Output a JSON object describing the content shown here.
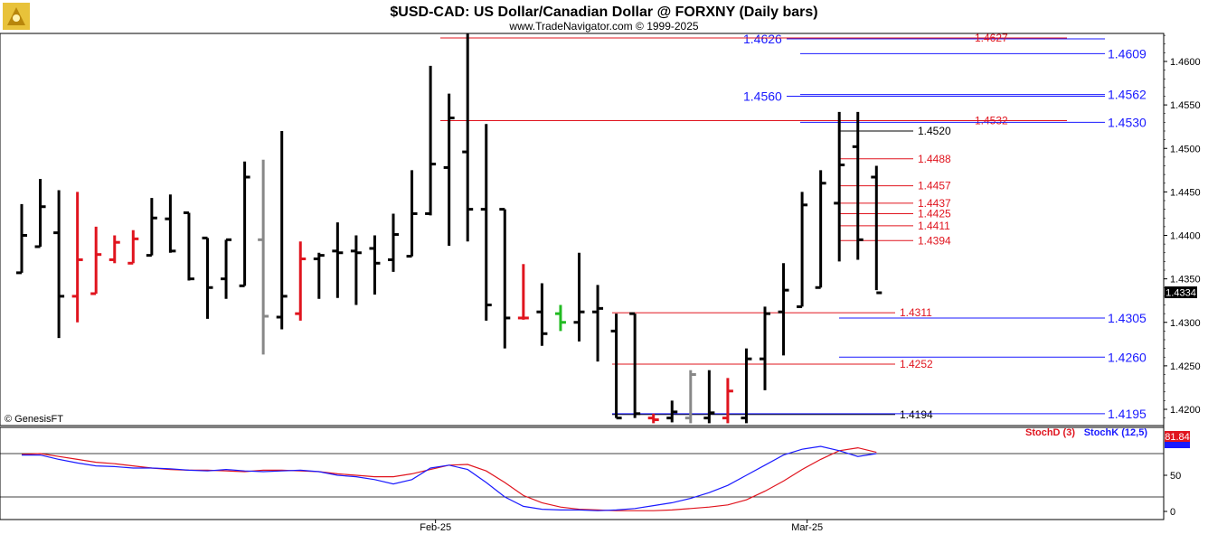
{
  "chart_data": [
    {
      "type": "ohlc",
      "title": "$USD-CAD:  US Dollar/Canadian Dollar @ FORXNY  (Daily bars)",
      "subtitle": "www.TradeNavigator.com © 1999-2025",
      "watermark": "© GenesisFT",
      "x_labels": [
        {
          "label": "Feb-25",
          "bar": 23
        },
        {
          "label": "Mar-25",
          "bar": 43
        }
      ],
      "y_ticks": [
        1.42,
        1.425,
        1.43,
        1.435,
        1.44,
        1.445,
        1.45,
        1.455,
        1.46
      ],
      "ylim": [
        1.418,
        1.4635
      ],
      "last_price": "1.4334",
      "last_price_value": 1.4334,
      "bars": [
        {
          "o": 1.4357,
          "h": 1.4436,
          "l": 1.4357,
          "c": 1.44,
          "color": "#000000"
        },
        {
          "o": 1.4387,
          "h": 1.4465,
          "l": 1.4387,
          "c": 1.4433,
          "color": "#000000"
        },
        {
          "o": 1.4403,
          "h": 1.4452,
          "l": 1.4282,
          "c": 1.433,
          "color": "#000000"
        },
        {
          "o": 1.433,
          "h": 1.445,
          "l": 1.43,
          "c": 1.4372,
          "color": "#e0141e"
        },
        {
          "o": 1.4333,
          "h": 1.441,
          "l": 1.4333,
          "c": 1.4378,
          "color": "#e0141e"
        },
        {
          "o": 1.4372,
          "h": 1.44,
          "l": 1.4368,
          "c": 1.4392,
          "color": "#e0141e"
        },
        {
          "o": 1.4368,
          "h": 1.4406,
          "l": 1.4368,
          "c": 1.4396,
          "color": "#e0141e"
        },
        {
          "o": 1.4377,
          "h": 1.4443,
          "l": 1.4377,
          "c": 1.442,
          "color": "#000000"
        },
        {
          "o": 1.4419,
          "h": 1.4447,
          "l": 1.438,
          "c": 1.4382,
          "color": "#000000"
        },
        {
          "o": 1.4426,
          "h": 1.4426,
          "l": 1.4348,
          "c": 1.435,
          "color": "#000000"
        },
        {
          "o": 1.4397,
          "h": 1.4397,
          "l": 1.4304,
          "c": 1.434,
          "color": "#000000"
        },
        {
          "o": 1.435,
          "h": 1.4395,
          "l": 1.4327,
          "c": 1.4395,
          "color": "#000000"
        },
        {
          "o": 1.4342,
          "h": 1.4485,
          "l": 1.4342,
          "c": 1.4467,
          "color": "#000000"
        },
        {
          "o": 1.4395,
          "h": 1.4487,
          "l": 1.4263,
          "c": 1.4307,
          "color": "#888888"
        },
        {
          "o": 1.4306,
          "h": 1.452,
          "l": 1.4292,
          "c": 1.433,
          "color": "#000000"
        },
        {
          "o": 1.431,
          "h": 1.4393,
          "l": 1.4302,
          "c": 1.4373,
          "color": "#e0141e"
        },
        {
          "o": 1.4373,
          "h": 1.438,
          "l": 1.4327,
          "c": 1.4377,
          "color": "#000000"
        },
        {
          "o": 1.4382,
          "h": 1.4415,
          "l": 1.4328,
          "c": 1.438,
          "color": "#000000"
        },
        {
          "o": 1.4382,
          "h": 1.44,
          "l": 1.432,
          "c": 1.438,
          "color": "#000000"
        },
        {
          "o": 1.4385,
          "h": 1.44,
          "l": 1.4332,
          "c": 1.4368,
          "color": "#000000"
        },
        {
          "o": 1.4372,
          "h": 1.4425,
          "l": 1.4358,
          "c": 1.4401,
          "color": "#000000"
        },
        {
          "o": 1.4376,
          "h": 1.4475,
          "l": 1.4376,
          "c": 1.4425,
          "color": "#000000"
        },
        {
          "o": 1.4425,
          "h": 1.4595,
          "l": 1.4423,
          "c": 1.4482,
          "color": "#000000"
        },
        {
          "o": 1.4478,
          "h": 1.4563,
          "l": 1.4388,
          "c": 1.4535,
          "color": "#000000"
        },
        {
          "o": 1.4496,
          "h": 1.4632,
          "l": 1.4393,
          "c": 1.443,
          "color": "#000000"
        },
        {
          "o": 1.443,
          "h": 1.4528,
          "l": 1.4302,
          "c": 1.432,
          "color": "#000000"
        },
        {
          "o": 1.443,
          "h": 1.443,
          "l": 1.427,
          "c": 1.4305,
          "color": "#000000"
        },
        {
          "o": 1.4305,
          "h": 1.4367,
          "l": 1.4303,
          "c": 1.4305,
          "color": "#e0141e"
        },
        {
          "o": 1.4312,
          "h": 1.4345,
          "l": 1.4273,
          "c": 1.4287,
          "color": "#000000"
        },
        {
          "o": 1.431,
          "h": 1.432,
          "l": 1.429,
          "c": 1.43,
          "color": "#22bb22"
        },
        {
          "o": 1.43,
          "h": 1.438,
          "l": 1.4278,
          "c": 1.4312,
          "color": "#000000"
        },
        {
          "o": 1.4312,
          "h": 1.4343,
          "l": 1.4255,
          "c": 1.4316,
          "color": "#000000"
        },
        {
          "o": 1.429,
          "h": 1.431,
          "l": 1.419,
          "c": 1.419,
          "color": "#000000"
        },
        {
          "o": 1.431,
          "h": 1.431,
          "l": 1.419,
          "c": 1.4195,
          "color": "#000000"
        },
        {
          "o": 1.419,
          "h": 1.4195,
          "l": 1.4184,
          "c": 1.4188,
          "color": "#e0141e"
        },
        {
          "o": 1.419,
          "h": 1.421,
          "l": 1.4185,
          "c": 1.4197,
          "color": "#000000"
        },
        {
          "o": 1.419,
          "h": 1.4245,
          "l": 1.4184,
          "c": 1.424,
          "color": "#888888"
        },
        {
          "o": 1.419,
          "h": 1.4245,
          "l": 1.4184,
          "c": 1.4196,
          "color": "#000000"
        },
        {
          "o": 1.419,
          "h": 1.4236,
          "l": 1.4184,
          "c": 1.4221,
          "color": "#e0141e"
        },
        {
          "o": 1.419,
          "h": 1.427,
          "l": 1.4184,
          "c": 1.4258,
          "color": "#000000"
        },
        {
          "o": 1.4258,
          "h": 1.4318,
          "l": 1.4222,
          "c": 1.431,
          "color": "#000000"
        },
        {
          "o": 1.4312,
          "h": 1.4368,
          "l": 1.4262,
          "c": 1.4337,
          "color": "#000000"
        },
        {
          "o": 1.4318,
          "h": 1.445,
          "l": 1.4318,
          "c": 1.4435,
          "color": "#000000"
        },
        {
          "o": 1.434,
          "h": 1.4475,
          "l": 1.434,
          "c": 1.446,
          "color": "#000000"
        },
        {
          "o": 1.4437,
          "h": 1.4542,
          "l": 1.437,
          "c": 1.4481,
          "color": "#000000"
        },
        {
          "o": 1.4502,
          "h": 1.4542,
          "l": 1.4372,
          "c": 1.4395,
          "color": "#000000"
        },
        {
          "o": 1.4467,
          "h": 1.448,
          "l": 1.4337,
          "c": 1.4334,
          "color": "#000000"
        }
      ],
      "levels": [
        {
          "value": 1.4626,
          "label": "1.4626",
          "color": "#1a1aff",
          "style": "blue-left"
        },
        {
          "value": 1.4627,
          "label": "1.4627",
          "color": "#e0141e",
          "style": "red"
        },
        {
          "value": 1.4609,
          "label": "1.4609",
          "color": "#1a1aff",
          "style": "blue-right"
        },
        {
          "value": 1.456,
          "label": "1.4560",
          "color": "#1a1aff",
          "style": "blue-left"
        },
        {
          "value": 1.4562,
          "label": "1.4562",
          "color": "#1a1aff",
          "style": "blue-right"
        },
        {
          "value": 1.4532,
          "label": "1.4532",
          "color": "#e0141e",
          "style": "red"
        },
        {
          "value": 1.453,
          "label": "1.4530",
          "color": "#1a1aff",
          "style": "blue-right"
        },
        {
          "value": 1.452,
          "label": "1.4520",
          "color": "#000000",
          "style": "black-short"
        },
        {
          "value": 1.4488,
          "label": "1.4488",
          "color": "#e0141e",
          "style": "red-short"
        },
        {
          "value": 1.4457,
          "label": "1.4457",
          "color": "#e0141e",
          "style": "red-short"
        },
        {
          "value": 1.4437,
          "label": "1.4437",
          "color": "#e0141e",
          "style": "red-short"
        },
        {
          "value": 1.4425,
          "label": "1.4425",
          "color": "#e0141e",
          "style": "red-short"
        },
        {
          "value": 1.4411,
          "label": "1.4411",
          "color": "#e0141e",
          "style": "red-short"
        },
        {
          "value": 1.4394,
          "label": "1.4394",
          "color": "#e0141e",
          "style": "red-short"
        },
        {
          "value": 1.4311,
          "label": "1.4311",
          "color": "#e0141e",
          "style": "red-mid"
        },
        {
          "value": 1.4305,
          "label": "1.4305",
          "color": "#1a1aff",
          "style": "blue-right"
        },
        {
          "value": 1.4252,
          "label": "1.4252",
          "color": "#e0141e",
          "style": "red-mid"
        },
        {
          "value": 1.426,
          "label": "1.4260",
          "color": "#1a1aff",
          "style": "blue-right"
        },
        {
          "value": 1.4194,
          "label": "1.4194",
          "color": "#000000",
          "style": "black-mid"
        },
        {
          "value": 1.4195,
          "label": "1.4195",
          "color": "#1a1aff",
          "style": "blue-right"
        }
      ]
    },
    {
      "type": "line",
      "title": "",
      "series": [
        {
          "name": "StochD (3)",
          "color": "#e0141e",
          "values": [
            79,
            80,
            76,
            72,
            68,
            66,
            63,
            60,
            58,
            57,
            57,
            56,
            55,
            57,
            57,
            56,
            55,
            52,
            50,
            48,
            48,
            52,
            58,
            64,
            65,
            56,
            40,
            22,
            12,
            6,
            3,
            2,
            1,
            1,
            1,
            2,
            4,
            6,
            9,
            16,
            28,
            42,
            58,
            72,
            84,
            88,
            81.84
          ]
        },
        {
          "name": "StochK (12,5)",
          "color": "#1a1aff",
          "values": [
            78,
            78,
            72,
            67,
            63,
            62,
            60,
            60,
            59,
            57,
            56,
            58,
            56,
            55,
            56,
            57,
            55,
            50,
            48,
            44,
            38,
            44,
            60,
            64,
            58,
            40,
            20,
            7,
            3,
            2,
            2,
            1,
            2,
            4,
            8,
            12,
            18,
            26,
            36,
            50,
            64,
            78,
            86,
            90,
            84,
            76,
            80
          ]
        }
      ],
      "y_ticks": [
        0,
        50
      ],
      "ylim": [
        0,
        100
      ],
      "legend": [
        "StochD (3)",
        "StochK (12,5)"
      ],
      "last_value": "81.84"
    }
  ]
}
